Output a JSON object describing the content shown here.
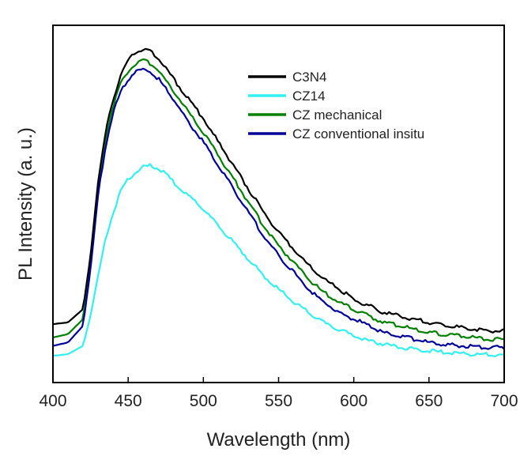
{
  "chart_data": {
    "type": "line",
    "title": "",
    "xlabel": "Wavelength (nm)",
    "ylabel": "PL Intensity (a. u.)",
    "xlim": [
      400,
      700
    ],
    "ylim": [
      0,
      1.07
    ],
    "x_ticks": [
      400,
      450,
      500,
      550,
      600,
      650,
      700
    ],
    "x_tick_labels": [
      "400",
      "450",
      "500",
      "550",
      "600",
      "650",
      "700"
    ],
    "y_tick_labels_shown": false,
    "grid": false,
    "legend_position": "top-right",
    "x": [
      400,
      410,
      420,
      425,
      430,
      435,
      440,
      445,
      450,
      455,
      460,
      465,
      470,
      475,
      480,
      490,
      500,
      510,
      520,
      530,
      540,
      550,
      560,
      570,
      580,
      590,
      600,
      610,
      620,
      630,
      640,
      650,
      660,
      670,
      680,
      690,
      700
    ],
    "series": [
      {
        "name": "C3N4",
        "color": "#000000",
        "values": [
          0.175,
          0.18,
          0.22,
          0.38,
          0.6,
          0.75,
          0.85,
          0.92,
          0.965,
          0.99,
          1.0,
          0.99,
          0.97,
          0.94,
          0.91,
          0.85,
          0.79,
          0.72,
          0.65,
          0.58,
          0.51,
          0.45,
          0.4,
          0.35,
          0.31,
          0.28,
          0.25,
          0.23,
          0.21,
          0.2,
          0.19,
          0.18,
          0.17,
          0.165,
          0.16,
          0.155,
          0.155
        ]
      },
      {
        "name": "CZ14",
        "color": "#33f0f0",
        "values": [
          0.08,
          0.085,
          0.11,
          0.2,
          0.32,
          0.43,
          0.51,
          0.57,
          0.61,
          0.63,
          0.645,
          0.65,
          0.64,
          0.625,
          0.6,
          0.56,
          0.52,
          0.47,
          0.42,
          0.37,
          0.32,
          0.28,
          0.24,
          0.21,
          0.18,
          0.16,
          0.14,
          0.125,
          0.115,
          0.105,
          0.1,
          0.095,
          0.09,
          0.088,
          0.085,
          0.083,
          0.08
        ]
      },
      {
        "name": "CZ mechanical",
        "color": "#008000",
        "values": [
          0.135,
          0.145,
          0.19,
          0.36,
          0.58,
          0.73,
          0.83,
          0.895,
          0.93,
          0.955,
          0.965,
          0.955,
          0.935,
          0.905,
          0.875,
          0.81,
          0.75,
          0.68,
          0.61,
          0.54,
          0.47,
          0.41,
          0.36,
          0.31,
          0.27,
          0.24,
          0.22,
          0.2,
          0.18,
          0.17,
          0.16,
          0.15,
          0.145,
          0.14,
          0.135,
          0.13,
          0.13
        ]
      },
      {
        "name": "CZ conventional insitu",
        "color": "#000099",
        "values": [
          0.11,
          0.12,
          0.17,
          0.34,
          0.56,
          0.71,
          0.81,
          0.87,
          0.91,
          0.93,
          0.94,
          0.93,
          0.91,
          0.88,
          0.85,
          0.78,
          0.72,
          0.65,
          0.58,
          0.51,
          0.44,
          0.38,
          0.33,
          0.28,
          0.24,
          0.21,
          0.19,
          0.17,
          0.15,
          0.14,
          0.13,
          0.12,
          0.115,
          0.11,
          0.108,
          0.105,
          0.105
        ]
      }
    ]
  }
}
